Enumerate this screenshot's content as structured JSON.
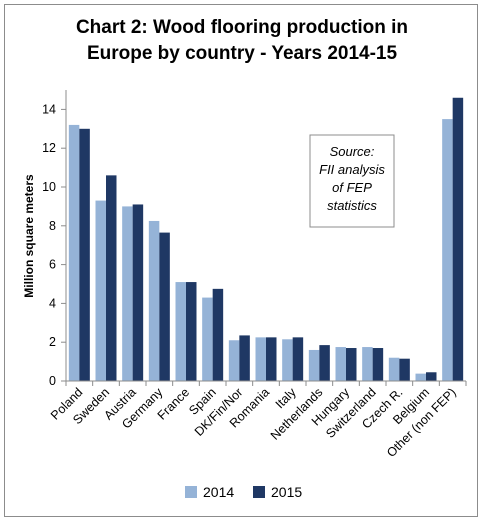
{
  "chart_data": {
    "type": "bar",
    "title_lines": [
      "Chart 2: Wood flooring production in",
      "Europe by country - Years 2014-15"
    ],
    "ylabel": "Million square meters",
    "xlabel": "",
    "ylim": [
      0,
      15
    ],
    "yticks": [
      0,
      2,
      4,
      6,
      8,
      10,
      12,
      14
    ],
    "categories": [
      "Poland",
      "Sweden",
      "Austria",
      "Germany",
      "France",
      "Spain",
      "DK/Fin/Nor",
      "Romania",
      "Italy",
      "Netherlands",
      "Hungary",
      "Switzerland",
      "Czech R.",
      "Belgium",
      "Other (non FEP)"
    ],
    "series": [
      {
        "name": "2014",
        "color": "#95b3d7",
        "values": [
          13.2,
          9.3,
          9.0,
          8.25,
          5.1,
          4.3,
          2.1,
          2.25,
          2.15,
          1.6,
          1.75,
          1.75,
          1.2,
          0.38,
          13.5
        ]
      },
      {
        "name": "2015",
        "color": "#1f3864",
        "values": [
          13.0,
          10.6,
          9.1,
          7.65,
          5.1,
          4.75,
          2.35,
          2.25,
          2.25,
          1.85,
          1.7,
          1.7,
          1.15,
          0.45,
          14.6
        ]
      }
    ],
    "grid": false,
    "legend_position": "bottom",
    "annotation_lines": [
      "Source:",
      "FII analysis",
      "of FEP",
      "statistics"
    ]
  }
}
